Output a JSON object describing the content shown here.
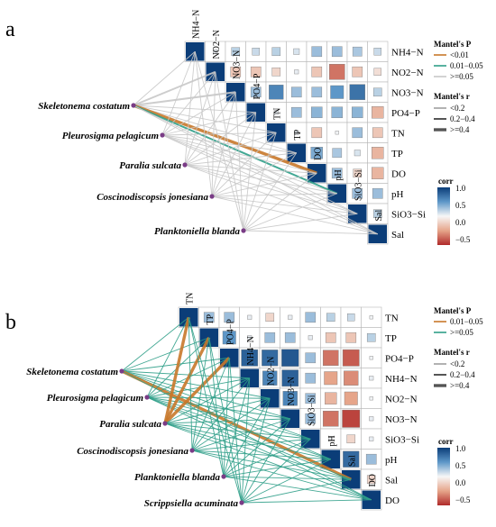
{
  "chart_data": [
    {
      "type": "heatmap",
      "panel": "a",
      "variables": [
        "NH4−N",
        "NO2−N",
        "NO3−N",
        "PO4−P",
        "TN",
        "TP",
        "DO",
        "pH",
        "SiO3−Si",
        "Sal"
      ],
      "top_labels": [
        "NH4−N",
        "NO2−N",
        "NO3−N",
        "PO4−P",
        "TN",
        "TP",
        "DO",
        "pH",
        "SiO3−Si",
        "Sal"
      ],
      "right_labels": [
        "NH4−N",
        "NO2−N",
        "NO3−N",
        "PO4−P",
        "TN",
        "TP",
        "DO",
        "pH",
        "SiO3−Si",
        "Sal"
      ],
      "corr": [
        [
          1.0,
          0.05,
          0.2,
          0.15,
          0.2,
          0.1,
          0.3,
          0.3,
          0.25,
          0.15
        ],
        [
          0.05,
          1.0,
          -0.3,
          -0.3,
          -0.2,
          0.05,
          -0.3,
          -0.7,
          -0.3,
          -0.15
        ],
        [
          0.2,
          -0.3,
          1.0,
          0.3,
          0.6,
          0.3,
          0.3,
          0.5,
          0.7,
          0.2
        ],
        [
          0.15,
          -0.3,
          0.3,
          1.0,
          0.05,
          0.3,
          0.35,
          0.35,
          0.35,
          -0.4
        ],
        [
          0.2,
          -0.2,
          0.6,
          0.05,
          1.0,
          0.05,
          -0.3,
          0.02,
          0.3,
          -0.3
        ],
        [
          0.1,
          0.05,
          0.3,
          0.3,
          0.05,
          1.0,
          0.4,
          0.25,
          0.1,
          -0.4
        ],
        [
          0.3,
          -0.3,
          0.3,
          0.35,
          -0.3,
          0.4,
          1.0,
          0.3,
          -0.2,
          -0.4
        ],
        [
          0.3,
          -0.7,
          0.5,
          0.35,
          0.02,
          0.25,
          0.3,
          1.0,
          0.3,
          0.3
        ],
        [
          0.25,
          -0.3,
          0.7,
          0.35,
          0.3,
          0.1,
          -0.2,
          0.3,
          1.0,
          0.2
        ],
        [
          0.15,
          -0.15,
          0.2,
          -0.4,
          -0.3,
          -0.4,
          -0.4,
          0.3,
          0.2,
          1.0
        ]
      ],
      "species": [
        "Skeletonema costatum",
        "Pleurosigma pelagicum",
        "Paralia sulcata",
        "Coscinodiscopsis jonesiana",
        "Planktoniella blanda"
      ],
      "mantel_links": [
        {
          "species": 0,
          "env": 0,
          "p": ">=0.05",
          "r": "<0.2"
        },
        {
          "species": 0,
          "env": 1,
          "p": ">=0.05",
          "r": "0.2-0.4"
        },
        {
          "species": 0,
          "env": 2,
          "p": ">=0.05",
          "r": "0.2-0.4"
        },
        {
          "species": 0,
          "env": 3,
          "p": ">=0.05",
          "r": "<0.2"
        },
        {
          "species": 0,
          "env": 4,
          "p": ">=0.05",
          "r": "<0.2"
        },
        {
          "species": 0,
          "env": 5,
          "p": ">=0.05",
          "r": "<0.2"
        },
        {
          "species": 0,
          "env": 6,
          "p": "<0.01",
          "r": ">=0.4"
        },
        {
          "species": 0,
          "env": 7,
          "p": "0.01-0.05",
          "r": "0.2-0.4"
        },
        {
          "species": 0,
          "env": 8,
          "p": ">=0.05",
          "r": "<0.2"
        },
        {
          "species": 0,
          "env": 9,
          "p": ">=0.05",
          "r": "<0.2"
        },
        {
          "species": 1,
          "env": 0,
          "p": ">=0.05",
          "r": "<0.2"
        },
        {
          "species": 1,
          "env": 1,
          "p": ">=0.05",
          "r": "<0.2"
        },
        {
          "species": 1,
          "env": 2,
          "p": ">=0.05",
          "r": "<0.2"
        },
        {
          "species": 1,
          "env": 3,
          "p": ">=0.05",
          "r": "<0.2"
        },
        {
          "species": 1,
          "env": 4,
          "p": ">=0.05",
          "r": "<0.2"
        },
        {
          "species": 1,
          "env": 5,
          "p": ">=0.05",
          "r": "<0.2"
        },
        {
          "species": 1,
          "env": 6,
          "p": ">=0.05",
          "r": "<0.2"
        },
        {
          "species": 1,
          "env": 7,
          "p": ">=0.05",
          "r": "<0.2"
        },
        {
          "species": 1,
          "env": 8,
          "p": ">=0.05",
          "r": "<0.2"
        },
        {
          "species": 1,
          "env": 9,
          "p": ">=0.05",
          "r": "<0.2"
        },
        {
          "species": 2,
          "env": 0,
          "p": ">=0.05",
          "r": "<0.2"
        },
        {
          "species": 2,
          "env": 1,
          "p": ">=0.05",
          "r": "<0.2"
        },
        {
          "species": 2,
          "env": 2,
          "p": ">=0.05",
          "r": "<0.2"
        },
        {
          "species": 2,
          "env": 3,
          "p": ">=0.05",
          "r": "<0.2"
        },
        {
          "species": 2,
          "env": 4,
          "p": ">=0.05",
          "r": "<0.2"
        },
        {
          "species": 2,
          "env": 5,
          "p": ">=0.05",
          "r": "<0.2"
        },
        {
          "species": 2,
          "env": 6,
          "p": ">=0.05",
          "r": "<0.2"
        },
        {
          "species": 2,
          "env": 7,
          "p": ">=0.05",
          "r": "<0.2"
        },
        {
          "species": 2,
          "env": 8,
          "p": ">=0.05",
          "r": "<0.2"
        },
        {
          "species": 2,
          "env": 9,
          "p": ">=0.05",
          "r": "<0.2"
        },
        {
          "species": 3,
          "env": 0,
          "p": ">=0.05",
          "r": "<0.2"
        },
        {
          "species": 3,
          "env": 1,
          "p": ">=0.05",
          "r": "<0.2"
        },
        {
          "species": 3,
          "env": 2,
          "p": ">=0.05",
          "r": "<0.2"
        },
        {
          "species": 3,
          "env": 3,
          "p": ">=0.05",
          "r": "<0.2"
        },
        {
          "species": 3,
          "env": 4,
          "p": ">=0.05",
          "r": "<0.2"
        },
        {
          "species": 3,
          "env": 5,
          "p": ">=0.05",
          "r": "<0.2"
        },
        {
          "species": 3,
          "env": 6,
          "p": ">=0.05",
          "r": "<0.2"
        },
        {
          "species": 3,
          "env": 7,
          "p": ">=0.05",
          "r": "<0.2"
        },
        {
          "species": 3,
          "env": 8,
          "p": ">=0.05",
          "r": "<0.2"
        },
        {
          "species": 3,
          "env": 9,
          "p": ">=0.05",
          "r": "<0.2"
        },
        {
          "species": 4,
          "env": 0,
          "p": ">=0.05",
          "r": "<0.2"
        },
        {
          "species": 4,
          "env": 1,
          "p": ">=0.05",
          "r": "<0.2"
        },
        {
          "species": 4,
          "env": 2,
          "p": ">=0.05",
          "r": "<0.2"
        },
        {
          "species": 4,
          "env": 3,
          "p": ">=0.05",
          "r": "<0.2"
        },
        {
          "species": 4,
          "env": 4,
          "p": ">=0.05",
          "r": "<0.2"
        },
        {
          "species": 4,
          "env": 5,
          "p": ">=0.05",
          "r": "<0.2"
        },
        {
          "species": 4,
          "env": 6,
          "p": ">=0.05",
          "r": "<0.2"
        },
        {
          "species": 4,
          "env": 7,
          "p": ">=0.05",
          "r": "<0.2"
        },
        {
          "species": 4,
          "env": 8,
          "p": ">=0.05",
          "r": "<0.2"
        },
        {
          "species": 4,
          "env": 9,
          "p": ">=0.05",
          "r": "<0.2"
        }
      ],
      "legend": {
        "mantel_p_title": "Mantel's P",
        "p_items": [
          {
            "label": "<0.01",
            "color": "#c8782a"
          },
          {
            "label": "0.01−0.05",
            "color": "#2f9e88"
          },
          {
            "label": ">=0.05",
            "color": "#c8c8c8"
          }
        ],
        "mantel_r_title": "Mantel's r",
        "r_items": [
          "<0.2",
          "0.2−0.4",
          ">=0.4"
        ],
        "corr_title": "corr",
        "corr_ticks": [
          "1.0",
          "0.5",
          "0.0",
          "−0.5"
        ]
      }
    },
    {
      "type": "heatmap",
      "panel": "b",
      "variables": [
        "TN",
        "TP",
        "PO4−P",
        "NH4−N",
        "NO2−N",
        "NO3−N",
        "SiO3−Si",
        "pH",
        "Sal",
        "DO"
      ],
      "top_labels": [
        "TN",
        "TP",
        "PO4−P",
        "NH4−N",
        "NO2−N",
        "NO3−N",
        "SiO3−Si",
        "pH",
        "Sal",
        "DO"
      ],
      "right_labels": [
        "TN",
        "TP",
        "PO4−P",
        "NH4−N",
        "NO2−N",
        "NO3−N",
        "SiO3−Si",
        "pH",
        "Sal",
        "DO"
      ],
      "corr": [
        [
          1.0,
          0.3,
          0.3,
          0.05,
          -0.2,
          0.05,
          0.3,
          0.2,
          0.15,
          0.02
        ],
        [
          0.3,
          1.0,
          0.5,
          0.05,
          0.3,
          0.3,
          0.05,
          -0.3,
          -0.3,
          0.2
        ],
        [
          0.3,
          0.5,
          1.0,
          0.8,
          0.75,
          0.85,
          0.3,
          -0.7,
          -0.8,
          0.02
        ],
        [
          0.05,
          0.05,
          0.8,
          1.0,
          0.6,
          0.8,
          0.3,
          -0.5,
          -0.6,
          0.05
        ],
        [
          -0.2,
          0.3,
          0.75,
          0.6,
          1.0,
          0.6,
          0.3,
          -0.4,
          -0.5,
          0.02
        ],
        [
          0.05,
          0.3,
          0.85,
          0.8,
          0.6,
          1.0,
          0.3,
          -0.7,
          -0.9,
          0.05
        ],
        [
          0.3,
          0.05,
          0.3,
          0.3,
          0.3,
          0.3,
          1.0,
          0.02,
          -0.2,
          0.05
        ],
        [
          0.2,
          -0.3,
          -0.7,
          -0.5,
          -0.4,
          -0.7,
          0.02,
          1.0,
          0.75,
          0.3
        ],
        [
          0.15,
          -0.3,
          -0.8,
          -0.6,
          -0.5,
          -0.9,
          -0.2,
          0.75,
          1.0,
          -0.2
        ],
        [
          0.02,
          0.2,
          0.02,
          0.05,
          0.02,
          0.05,
          0.05,
          0.3,
          -0.2,
          1.0
        ]
      ],
      "species": [
        "Skeletonema costatum",
        "Pleurosigma pelagicum",
        "Paralia sulcata",
        "Coscinodiscopsis jonesiana",
        "Planktoniella blanda",
        "Scrippsiella acuminata"
      ],
      "mantel_links": [
        {
          "species": 0,
          "env": 0,
          "p": ">=0.05",
          "r": "<0.2"
        },
        {
          "species": 0,
          "env": 1,
          "p": ">=0.05",
          "r": "<0.2"
        },
        {
          "species": 0,
          "env": 2,
          "p": ">=0.05",
          "r": "<0.2"
        },
        {
          "species": 0,
          "env": 3,
          "p": ">=0.05",
          "r": "<0.2"
        },
        {
          "species": 0,
          "env": 4,
          "p": ">=0.05",
          "r": "<0.2"
        },
        {
          "species": 0,
          "env": 5,
          "p": ">=0.05",
          "r": "<0.2"
        },
        {
          "species": 0,
          "env": 6,
          "p": ">=0.05",
          "r": "<0.2"
        },
        {
          "species": 0,
          "env": 7,
          "p": ">=0.05",
          "r": "<0.2"
        },
        {
          "species": 0,
          "env": 8,
          "p": "0.01-0.05",
          "r": ">=0.4"
        },
        {
          "species": 0,
          "env": 9,
          "p": ">=0.05",
          "r": "<0.2"
        },
        {
          "species": 1,
          "env": 0,
          "p": ">=0.05",
          "r": "<0.2"
        },
        {
          "species": 1,
          "env": 1,
          "p": ">=0.05",
          "r": "<0.2"
        },
        {
          "species": 1,
          "env": 2,
          "p": ">=0.05",
          "r": "<0.2"
        },
        {
          "species": 1,
          "env": 3,
          "p": ">=0.05",
          "r": "<0.2"
        },
        {
          "species": 1,
          "env": 4,
          "p": ">=0.05",
          "r": "<0.2"
        },
        {
          "species": 1,
          "env": 5,
          "p": ">=0.05",
          "r": "<0.2"
        },
        {
          "species": 1,
          "env": 6,
          "p": ">=0.05",
          "r": "<0.2"
        },
        {
          "species": 1,
          "env": 7,
          "p": ">=0.05",
          "r": "<0.2"
        },
        {
          "species": 1,
          "env": 8,
          "p": ">=0.05",
          "r": "<0.2"
        },
        {
          "species": 1,
          "env": 9,
          "p": ">=0.05",
          "r": "<0.2"
        },
        {
          "species": 2,
          "env": 0,
          "p": "0.01-0.05",
          "r": ">=0.4"
        },
        {
          "species": 2,
          "env": 1,
          "p": "0.01-0.05",
          "r": ">=0.4"
        },
        {
          "species": 2,
          "env": 2,
          "p": "0.01-0.05",
          "r": ">=0.4"
        },
        {
          "species": 2,
          "env": 3,
          "p": ">=0.05",
          "r": "<0.2"
        },
        {
          "species": 2,
          "env": 4,
          "p": ">=0.05",
          "r": "<0.2"
        },
        {
          "species": 2,
          "env": 5,
          "p": ">=0.05",
          "r": "<0.2"
        },
        {
          "species": 2,
          "env": 6,
          "p": ">=0.05",
          "r": "<0.2"
        },
        {
          "species": 2,
          "env": 7,
          "p": ">=0.05",
          "r": "<0.2"
        },
        {
          "species": 2,
          "env": 8,
          "p": ">=0.05",
          "r": "<0.2"
        },
        {
          "species": 2,
          "env": 9,
          "p": ">=0.05",
          "r": "<0.2"
        },
        {
          "species": 3,
          "env": 0,
          "p": ">=0.05",
          "r": "<0.2"
        },
        {
          "species": 3,
          "env": 1,
          "p": ">=0.05",
          "r": "<0.2"
        },
        {
          "species": 3,
          "env": 2,
          "p": ">=0.05",
          "r": "<0.2"
        },
        {
          "species": 3,
          "env": 3,
          "p": ">=0.05",
          "r": "<0.2"
        },
        {
          "species": 3,
          "env": 4,
          "p": ">=0.05",
          "r": "<0.2"
        },
        {
          "species": 3,
          "env": 5,
          "p": ">=0.05",
          "r": "<0.2"
        },
        {
          "species": 3,
          "env": 6,
          "p": ">=0.05",
          "r": "<0.2"
        },
        {
          "species": 3,
          "env": 7,
          "p": ">=0.05",
          "r": "<0.2"
        },
        {
          "species": 3,
          "env": 8,
          "p": ">=0.05",
          "r": "<0.2"
        },
        {
          "species": 3,
          "env": 9,
          "p": ">=0.05",
          "r": "<0.2"
        },
        {
          "species": 4,
          "env": 0,
          "p": ">=0.05",
          "r": "<0.2"
        },
        {
          "species": 4,
          "env": 1,
          "p": ">=0.05",
          "r": "<0.2"
        },
        {
          "species": 4,
          "env": 2,
          "p": ">=0.05",
          "r": "<0.2"
        },
        {
          "species": 4,
          "env": 3,
          "p": ">=0.05",
          "r": "<0.2"
        },
        {
          "species": 4,
          "env": 4,
          "p": ">=0.05",
          "r": "<0.2"
        },
        {
          "species": 4,
          "env": 5,
          "p": ">=0.05",
          "r": "<0.2"
        },
        {
          "species": 4,
          "env": 6,
          "p": ">=0.05",
          "r": "<0.2"
        },
        {
          "species": 4,
          "env": 7,
          "p": ">=0.05",
          "r": "<0.2"
        },
        {
          "species": 4,
          "env": 8,
          "p": ">=0.05",
          "r": "<0.2"
        },
        {
          "species": 4,
          "env": 9,
          "p": ">=0.05",
          "r": "<0.2"
        },
        {
          "species": 5,
          "env": 0,
          "p": ">=0.05",
          "r": "<0.2"
        },
        {
          "species": 5,
          "env": 1,
          "p": ">=0.05",
          "r": "<0.2"
        },
        {
          "species": 5,
          "env": 2,
          "p": ">=0.05",
          "r": "<0.2"
        },
        {
          "species": 5,
          "env": 3,
          "p": ">=0.05",
          "r": "<0.2"
        },
        {
          "species": 5,
          "env": 4,
          "p": ">=0.05",
          "r": "<0.2"
        },
        {
          "species": 5,
          "env": 5,
          "p": ">=0.05",
          "r": "<0.2"
        },
        {
          "species": 5,
          "env": 6,
          "p": ">=0.05",
          "r": "<0.2"
        },
        {
          "species": 5,
          "env": 7,
          "p": ">=0.05",
          "r": "<0.2"
        },
        {
          "species": 5,
          "env": 8,
          "p": ">=0.05",
          "r": "<0.2"
        },
        {
          "species": 5,
          "env": 9,
          "p": ">=0.05",
          "r": "<0.2"
        }
      ],
      "legend": {
        "mantel_p_title": "Mantel's P",
        "p_items": [
          {
            "label": "0.01−0.05",
            "color": "#c8782a"
          },
          {
            "label": ">=0.05",
            "color": "#2f9e88"
          }
        ],
        "mantel_r_title": "Mantel's r",
        "r_items": [
          "<0.2",
          "0.2−0.4",
          ">=0.4"
        ],
        "corr_title": "corr",
        "corr_ticks": [
          "1.0",
          "0.5",
          "0.0",
          "−0.5"
        ]
      }
    }
  ]
}
